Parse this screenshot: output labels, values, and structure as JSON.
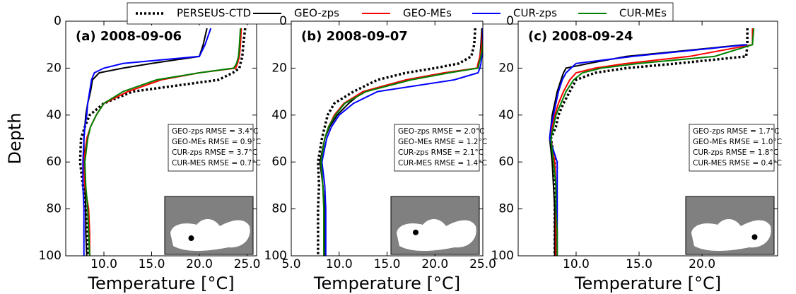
{
  "chart_data": [
    {
      "type": "line",
      "title": "(a) 2008-09-06",
      "ylabel": "Depth",
      "xlabel": "Temperature [°C]",
      "legend": "top",
      "depth": [
        3,
        10,
        15,
        18,
        20,
        22,
        25,
        30,
        35,
        40,
        45,
        50,
        60,
        70,
        80,
        90,
        100
      ],
      "series": [
        {
          "name": "PERSEUS-CTD",
          "color": "#000000",
          "linestyle": "dotted",
          "values": [
            24.8,
            24.6,
            24.5,
            24.3,
            24.2,
            23.5,
            22,
            13,
            10,
            8.5,
            8.0,
            7.6,
            7.5,
            7.8,
            8.1,
            8.2,
            8.3
          ]
        },
        {
          "name": "GEO-zps",
          "color": "#000000",
          "linestyle": "solid",
          "values": [
            20.8,
            20.4,
            20.0,
            15,
            12,
            9.5,
            8.8,
            8.6,
            8.3,
            8.1,
            8.0,
            7.9,
            7.9,
            8.0,
            8.1,
            8.1,
            8.2
          ]
        },
        {
          "name": "GEO-MEs",
          "color": "#ff0000",
          "linestyle": "solid",
          "values": [
            24.4,
            24.3,
            24.2,
            24.0,
            23.8,
            20,
            16,
            12.5,
            10,
            9.2,
            8.6,
            8.2,
            7.9,
            8.0,
            8.4,
            8.5,
            8.5
          ]
        },
        {
          "name": "CUR-zps",
          "color": "#0000ff",
          "linestyle": "solid",
          "values": [
            21.2,
            20.6,
            20.0,
            12,
            10,
            9.0,
            8.7,
            8.5,
            8.3,
            8.2,
            8.0,
            7.9,
            7.8,
            7.8,
            7.9,
            7.9,
            7.9
          ]
        },
        {
          "name": "CUR-MEs",
          "color": "#008000",
          "linestyle": "solid",
          "values": [
            24.3,
            24.2,
            24.1,
            23.9,
            23.6,
            20,
            15.5,
            12,
            10,
            9.2,
            8.6,
            8.3,
            8.0,
            8.1,
            8.3,
            8.4,
            8.5
          ]
        }
      ],
      "xlim": [
        6,
        26
      ],
      "xticks": [
        {
          "value": 10,
          "label": "10.0"
        },
        {
          "value": 15,
          "label": "15.0"
        },
        {
          "value": 20,
          "label": "20.0"
        },
        {
          "value": 25,
          "label": "25.0"
        }
      ],
      "ylim": [
        0,
        100
      ],
      "yticks": [
        0,
        20,
        40,
        60,
        80,
        100
      ],
      "y_inverted": true,
      "annotations": [
        "GEO-zps RMSE = 3.4°C",
        "GEO-MEs RMSE = 0.9°C",
        "CUR-zps RMSE = 3.7°C",
        "CUR-MES RMSE = 0.7°C"
      ]
    },
    {
      "type": "line",
      "title": "(b) 2008-09-07",
      "xlabel": "Temperature [°C]",
      "depth": [
        3,
        10,
        15,
        18,
        20,
        22,
        25,
        30,
        35,
        40,
        45,
        50,
        60,
        70,
        80,
        90,
        100
      ],
      "series": [
        {
          "name": "PERSEUS-CTD",
          "color": "#000000",
          "linestyle": "dotted",
          "values": [
            24.2,
            24.1,
            23.8,
            22.5,
            20,
            17,
            14,
            11.5,
            9.5,
            8.8,
            8.5,
            8.2,
            7.8,
            7.9,
            7.8,
            7.8,
            7.8
          ]
        },
        {
          "name": "GEO-zps",
          "color": "#000000",
          "linestyle": "solid",
          "values": [
            24.9,
            24.8,
            24.7,
            24.6,
            24.5,
            21,
            17,
            12.5,
            11,
            9.8,
            9.0,
            8.5,
            8.0,
            8.3,
            8.5,
            8.5,
            8.5
          ]
        },
        {
          "name": "GEO-MEs",
          "color": "#ff0000",
          "linestyle": "solid",
          "values": [
            25,
            24.9,
            24.7,
            24.5,
            24.4,
            21,
            17,
            12.5,
            10.5,
            9.5,
            8.9,
            8.5,
            8.1,
            8.3,
            8.4,
            8.4,
            8.4
          ]
        },
        {
          "name": "CUR-zps",
          "color": "#0000ff",
          "linestyle": "solid",
          "values": [
            25,
            25,
            24.9,
            24.8,
            24.7,
            24.5,
            22,
            14,
            11.5,
            10,
            9.2,
            8.7,
            8.2,
            8.5,
            8.6,
            8.6,
            8.6
          ]
        },
        {
          "name": "CUR-MEs",
          "color": "#008000",
          "linestyle": "solid",
          "values": [
            25.1,
            25,
            24.8,
            24.6,
            24.5,
            21.5,
            17.5,
            12.8,
            10.6,
            9.6,
            8.9,
            8.5,
            8.1,
            8.3,
            8.4,
            8.4,
            8.4
          ]
        }
      ],
      "xlim": [
        5,
        25
      ],
      "xticks": [
        {
          "value": 5,
          "label": "5.0"
        },
        {
          "value": 10,
          "label": "10.0"
        },
        {
          "value": 15,
          "label": "15.0"
        },
        {
          "value": 20,
          "label": "20.0"
        },
        {
          "value": 25,
          "label": "25.0"
        }
      ],
      "ylim": [
        0,
        100
      ],
      "yticks": [
        0,
        20,
        40,
        60,
        80,
        100
      ],
      "y_inverted": true,
      "annotations": [
        "GEO-zps RMSE = 2.0°C",
        "GEO-MEs RMSE = 1.2°C",
        "CUR-zps RMSE = 2.1°C",
        "CUR-MES RMSE = 1.4°C"
      ]
    },
    {
      "type": "line",
      "title": "(c) 2008-09-24",
      "xlabel": "Temperature [°C]",
      "depth": [
        3,
        10,
        15,
        18,
        20,
        22,
        25,
        30,
        35,
        40,
        45,
        50,
        60,
        70,
        80,
        90,
        100
      ],
      "series": [
        {
          "name": "PERSEUS-CTD",
          "color": "#000000",
          "linestyle": "dotted",
          "values": [
            23.6,
            23.6,
            23.5,
            18,
            14,
            11.5,
            10,
            9.5,
            9,
            8.6,
            8.4,
            8.0,
            8.3,
            8.3,
            8.3,
            8.3,
            8.3
          ]
        },
        {
          "name": "GEO-zps",
          "color": "#000000",
          "linestyle": "solid",
          "values": [
            null,
            23.4,
            14,
            11,
            9.2,
            9.0,
            8.8,
            8.5,
            8.3,
            8.1,
            8.0,
            7.9,
            8.1,
            8.2,
            8.3,
            8.3,
            8.3
          ]
        },
        {
          "name": "GEO-MEs",
          "color": "#ff0000",
          "linestyle": "solid",
          "values": [
            24.0,
            24.0,
            19,
            14,
            11.5,
            10.0,
            9.5,
            9.0,
            8.6,
            8.3,
            8.1,
            8.0,
            8.3,
            8.4,
            8.4,
            8.4,
            8.4
          ]
        },
        {
          "name": "CUR-zps",
          "color": "#0000ff",
          "linestyle": "solid",
          "values": [
            null,
            23.6,
            14.5,
            10,
            9.6,
            9.2,
            8.9,
            8.6,
            8.4,
            8.2,
            8.0,
            7.9,
            8.5,
            8.5,
            8.5,
            8.5,
            8.5
          ]
        },
        {
          "name": "CUR-MEs",
          "color": "#008000",
          "linestyle": "solid",
          "values": [
            24.1,
            24.0,
            21,
            15,
            12,
            10.5,
            9.8,
            9.2,
            8.8,
            8.4,
            8.2,
            8.0,
            8.2,
            8.4,
            8.4,
            8.5,
            8.5
          ]
        }
      ],
      "xlim": [
        5.4,
        26
      ],
      "xticks": [
        {
          "value": 10,
          "label": "10.0"
        },
        {
          "value": 15,
          "label": "15.0"
        },
        {
          "value": 20,
          "label": "20.0"
        }
      ],
      "ylim": [
        0,
        100
      ],
      "yticks": [
        0,
        20,
        40,
        60,
        80,
        100
      ],
      "y_inverted": true,
      "annotations": [
        "GEO-zps RMSE = 1.7°C",
        "GEO-MEs RMSE = 1.0°C",
        "CUR-zps RMSE = 1.8°C",
        "CUR-MES RMSE = 0.4°C"
      ]
    }
  ]
}
